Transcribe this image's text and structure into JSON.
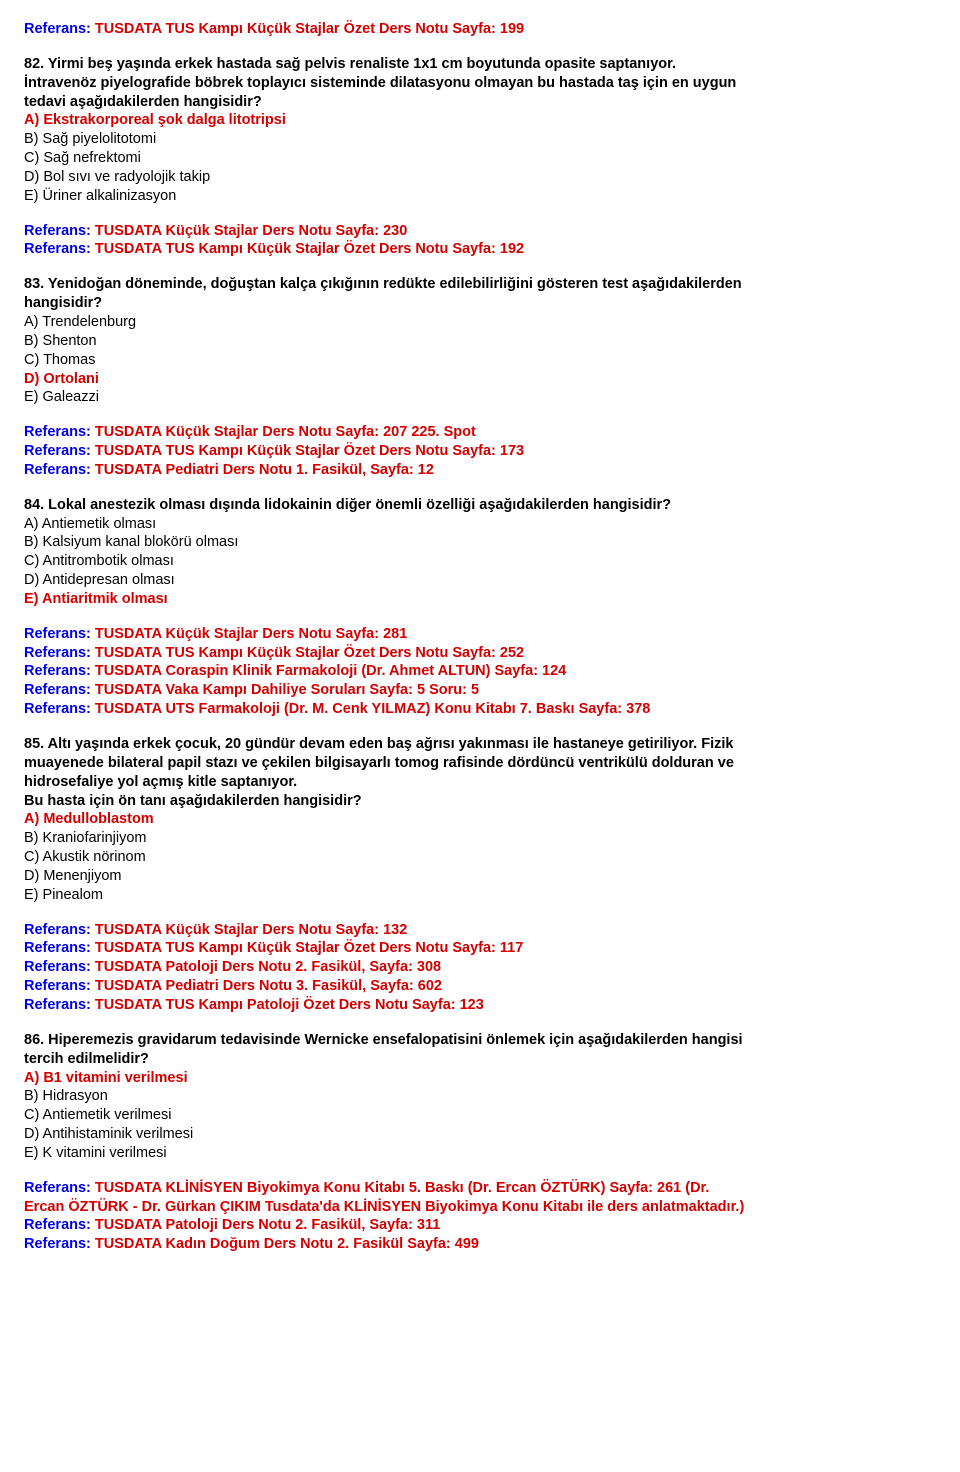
{
  "ref_label": "Referans:",
  "top_ref": "TUSDATA TUS Kampı Küçük Stajlar Özet Ders Notu Sayfa: 199",
  "q82": {
    "text1": "82. Yirmi beş yaşında erkek hastada sağ pelvis renaliste 1x1 cm boyutunda opasite saptanıyor.",
    "text2": "İntravenöz piyelografide böbrek toplayıcı sisteminde dilatasyonu olmayan bu hastada taş için en uygun",
    "text3": "tedavi aşağıdakilerden hangisidir?",
    "a": "A) Ekstrakorporeal şok dalga litotripsi",
    "b": "B) Sağ piyelolitotomi",
    "c": "C) Sağ nefrektomi",
    "d": "D) Bol sıvı ve radyolojik takip",
    "e": "E) Üriner alkalinizasyon",
    "refs": [
      "TUSDATA Küçük Stajlar Ders Notu Sayfa: 230",
      "TUSDATA TUS Kampı Küçük Stajlar Özet Ders Notu Sayfa: 192"
    ]
  },
  "q83": {
    "text1": "83. Yenidoğan döneminde, doğuştan kalça çıkığının redükte edilebilirliğini gösteren test aşağıdakilerden",
    "text2": "hangisidir?",
    "a": "A) Trendelenburg",
    "b": "B) Shenton",
    "c": "C) Thomas",
    "d": "D) Ortolani",
    "e": "E) Galeazzi",
    "refs": [
      "TUSDATA Küçük Stajlar Ders Notu Sayfa: 207 225. Spot",
      "TUSDATA TUS Kampı Küçük Stajlar Özet Ders Notu Sayfa: 173",
      "TUSDATA Pediatri Ders Notu 1. Fasikül, Sayfa: 12"
    ]
  },
  "q84": {
    "text1": "84. Lokal anestezik olması dışında lidokainin diğer önemli özelliği aşağıdakilerden hangisidir?",
    "a": "A) Antiemetik olması",
    "b": "B) Kalsiyum kanal blokörü olması",
    "c": "C) Antitrombotik olması",
    "d": "D) Antidepresan olması",
    "e": "E) Antiaritmik olması",
    "refs": [
      "TUSDATA Küçük Stajlar Ders Notu Sayfa: 281",
      "TUSDATA TUS Kampı Küçük Stajlar Özet Ders Notu Sayfa: 252",
      "TUSDATA Coraspin Klinik Farmakoloji (Dr. Ahmet ALTUN) Sayfa: 124",
      "TUSDATA Vaka Kampı Dahiliye Soruları Sayfa: 5 Soru: 5",
      "TUSDATA UTS Farmakoloji (Dr. M. Cenk YILMAZ) Konu Kitabı 7. Baskı Sayfa: 378"
    ]
  },
  "q85": {
    "text1": "85. Altı yaşında erkek çocuk, 20 gündür devam eden baş ağrısı yakınması ile hastaneye getiriliyor. Fizik",
    "text2": "muayenede bilateral papil stazı ve çekilen bilgisayarlı tomog rafisinde dördüncü ventrikülü dolduran ve",
    "text3": "hidrosefaliye yol açmış kitle saptanıyor.",
    "text4": "Bu hasta için ön tanı aşağıdakilerden hangisidir?",
    "a": "A) Medulloblastom",
    "b": "B) Kraniofarinjiyom",
    "c": "C) Akustik nörinom",
    "d": "D) Menenjiyom",
    "e": "E) Pinealom",
    "refs": [
      "TUSDATA Küçük Stajlar Ders Notu Sayfa: 132",
      "TUSDATA TUS Kampı Küçük Stajlar Özet Ders Notu Sayfa: 117",
      "TUSDATA Patoloji Ders Notu 2. Fasikül, Sayfa: 308",
      "TUSDATA Pediatri Ders Notu 3. Fasikül, Sayfa: 602",
      "TUSDATA TUS Kampı Patoloji Özet Ders Notu Sayfa: 123"
    ]
  },
  "q86": {
    "text1": "86. Hiperemezis gravidarum tedavisinde Wernicke ensefalopatisini önlemek için aşağıdakilerden hangisi",
    "text2": "tercih edilmelidir?",
    "a": "A) B1 vitamini verilmesi",
    "b": "B) Hidrasyon",
    "c": "C) Antiemetik verilmesi",
    "d": "D) Antihistaminik verilmesi",
    "e": "E) K vitamini verilmesi",
    "refs": [
      "TUSDATA KLİNİSYEN Biyokimya Konu Kitabı 5. Baskı (Dr. Ercan ÖZTÜRK) Sayfa: 261 (Dr.",
      "Ercan ÖZTÜRK - Dr. Gürkan ÇIKIM Tusdata'da KLİNİSYEN Biyokimya Konu Kitabı ile ders anlatmaktadır.)",
      "TUSDATA Patoloji Ders Notu 2. Fasikül, Sayfa: 311",
      "TUSDATA Kadın Doğum Ders Notu 2. Fasikül Sayfa: 499"
    ]
  }
}
